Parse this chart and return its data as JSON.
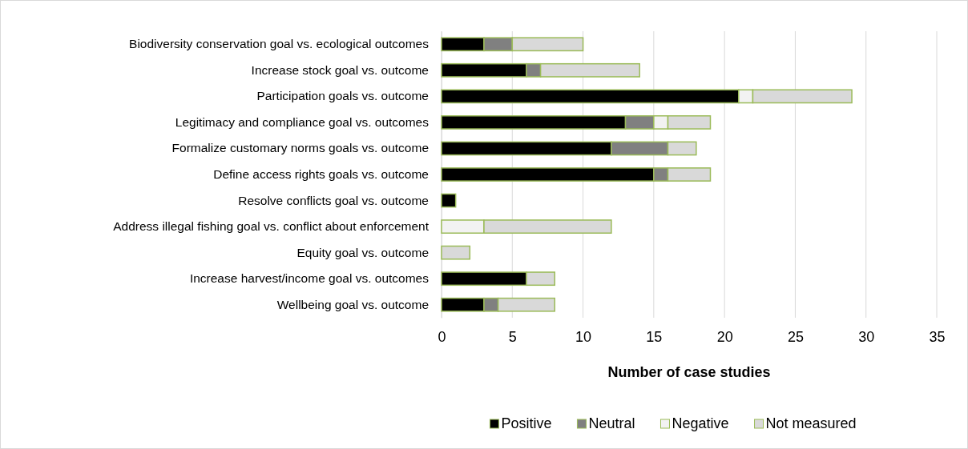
{
  "chart_data": {
    "type": "bar",
    "orientation": "horizontal",
    "stacked": true,
    "xlabel": "Number of case studies",
    "categories": [
      "Biodiversity conservation goal vs. ecological outcomes",
      "Increase stock goal vs. outcome",
      "Participation goals vs. outcome",
      "Legitimacy and compliance goal vs. outcomes",
      "Formalize customary norms goals vs. outcome",
      "Define access rights goals vs. outcome",
      "Resolve conflicts goal vs. outcome",
      "Address illegal fishing goal vs. conflict about enforcement",
      "Equity goal vs. outcome",
      "Increase harvest/income goal vs. outcomes",
      "Wellbeing goal vs. outcome"
    ],
    "series": [
      {
        "name": "Positive",
        "color": "#000000",
        "values": [
          3,
          6,
          21,
          13,
          12,
          15,
          1,
          0,
          0,
          6,
          3
        ]
      },
      {
        "name": "Neutral",
        "color": "#808080",
        "values": [
          2,
          1,
          0,
          2,
          4,
          1,
          0,
          0,
          0,
          0,
          1
        ]
      },
      {
        "name": "Negative",
        "color": "#f2f2f2",
        "values": [
          0,
          0,
          1,
          1,
          0,
          0,
          0,
          3,
          0,
          0,
          0
        ]
      },
      {
        "name": "Not measured",
        "color": "#d9d9d9",
        "values": [
          5,
          7,
          7,
          3,
          2,
          3,
          0,
          9,
          2,
          2,
          4
        ]
      }
    ],
    "xlim": [
      0,
      35
    ],
    "xticks": [
      0,
      5,
      10,
      15,
      20,
      25,
      30,
      35
    ],
    "grid": "x",
    "legend": "bottom"
  }
}
